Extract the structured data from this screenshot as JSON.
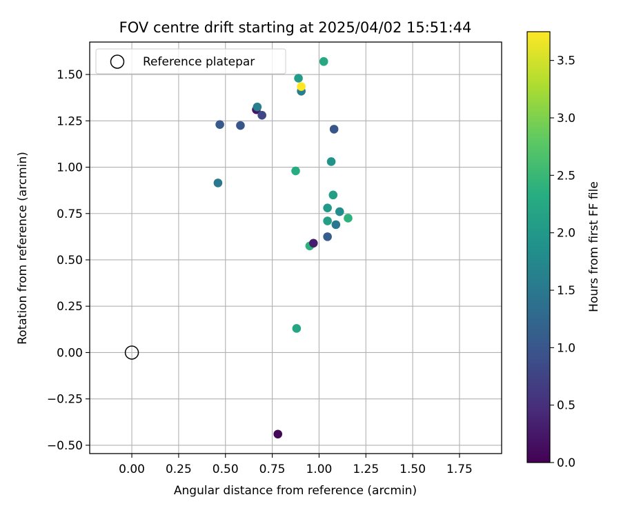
{
  "chart_data": {
    "type": "scatter",
    "title": "FOV centre drift starting at 2025/04/02 15:51:44",
    "xlabel": "Angular distance from reference (arcmin)",
    "ylabel": "Rotation from reference (arcmin)",
    "xlim": [
      -0.225,
      1.975
    ],
    "ylim": [
      -0.545,
      1.675
    ],
    "grid": true,
    "xticks": [
      0.0,
      0.25,
      0.5,
      0.75,
      1.0,
      1.25,
      1.5,
      1.75
    ],
    "xtick_labels": [
      "0.00",
      "0.25",
      "0.50",
      "0.75",
      "1.00",
      "1.25",
      "1.50",
      "1.75"
    ],
    "yticks": [
      -0.5,
      -0.25,
      0.0,
      0.25,
      0.5,
      0.75,
      1.0,
      1.25,
      1.5
    ],
    "ytick_labels": [
      "−0.50",
      "−0.25",
      "0.00",
      "0.25",
      "0.50",
      "0.75",
      "1.00",
      "1.25",
      "1.50"
    ],
    "legend": {
      "placement": "top-left",
      "entries": [
        {
          "label": "Reference platepar",
          "marker": "open-circle",
          "color": "#000000"
        }
      ]
    },
    "reference_point": {
      "x": 0.0,
      "y": 0.0
    },
    "colorbar": {
      "label": "Hours from first FF file",
      "colormap": "viridis",
      "range": [
        0.0,
        3.75
      ],
      "ticks": [
        0.0,
        0.5,
        1.0,
        1.5,
        2.0,
        2.5,
        3.0,
        3.5
      ],
      "tick_labels": [
        "0.0",
        "0.5",
        "1.0",
        "1.5",
        "2.0",
        "2.5",
        "3.0",
        "3.5"
      ]
    },
    "points": [
      {
        "x": 0.78,
        "y": -0.44,
        "hours": 0.05
      },
      {
        "x": 0.88,
        "y": 0.13,
        "hours": 2.2
      },
      {
        "x": 0.95,
        "y": 0.575,
        "hours": 2.4
      },
      {
        "x": 0.97,
        "y": 0.59,
        "hours": 0.3
      },
      {
        "x": 1.045,
        "y": 0.625,
        "hours": 1.1
      },
      {
        "x": 1.045,
        "y": 0.71,
        "hours": 2.1
      },
      {
        "x": 1.045,
        "y": 0.78,
        "hours": 2.0
      },
      {
        "x": 1.09,
        "y": 0.69,
        "hours": 1.5
      },
      {
        "x": 1.11,
        "y": 0.76,
        "hours": 1.8
      },
      {
        "x": 1.155,
        "y": 0.725,
        "hours": 2.4
      },
      {
        "x": 1.075,
        "y": 0.85,
        "hours": 2.1
      },
      {
        "x": 0.46,
        "y": 0.915,
        "hours": 1.5
      },
      {
        "x": 0.875,
        "y": 0.98,
        "hours": 2.3
      },
      {
        "x": 1.065,
        "y": 1.03,
        "hours": 1.9
      },
      {
        "x": 1.08,
        "y": 1.205,
        "hours": 1.0
      },
      {
        "x": 0.47,
        "y": 1.23,
        "hours": 1.05
      },
      {
        "x": 0.58,
        "y": 1.225,
        "hours": 1.0
      },
      {
        "x": 0.665,
        "y": 1.31,
        "hours": 0.2
      },
      {
        "x": 0.67,
        "y": 1.325,
        "hours": 1.6
      },
      {
        "x": 0.695,
        "y": 1.28,
        "hours": 0.8
      },
      {
        "x": 0.89,
        "y": 1.48,
        "hours": 2.05
      },
      {
        "x": 0.905,
        "y": 1.41,
        "hours": 1.6
      },
      {
        "x": 0.905,
        "y": 1.435,
        "hours": 3.75
      },
      {
        "x": 1.025,
        "y": 1.57,
        "hours": 2.25
      }
    ]
  }
}
